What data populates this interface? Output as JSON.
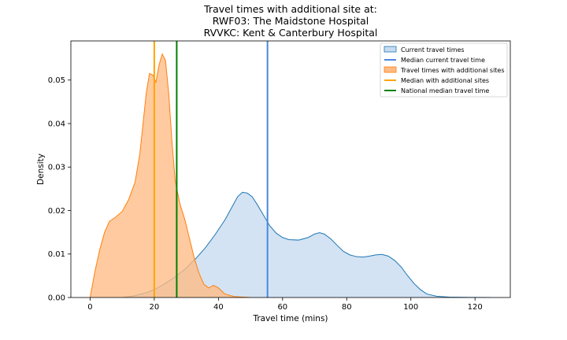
{
  "chart_data": {
    "type": "area",
    "title_lines": [
      "Travel times with additional site at:",
      "RWF03: The Maidstone Hospital",
      "RVVKC: Kent & Canterbury Hospital"
    ],
    "xlabel": "Travel time (mins)",
    "ylabel": "Density",
    "xlim": [
      -6,
      131
    ],
    "ylim": [
      0,
      0.059
    ],
    "xticks": [
      0,
      20,
      40,
      60,
      80,
      100,
      120
    ],
    "yticks": [
      0.0,
      0.01,
      0.02,
      0.03,
      0.04,
      0.05
    ],
    "ytick_labels": [
      "0.00",
      "0.01",
      "0.02",
      "0.03",
      "0.04",
      "0.05"
    ],
    "grid": false,
    "legend_position": "top-right",
    "series": [
      {
        "name": "Current travel times",
        "kind": "density",
        "color": "#1f77b4",
        "fill": "#c6dbef",
        "points": [
          [
            10,
            0
          ],
          [
            14,
            0.0004
          ],
          [
            18,
            0.0012
          ],
          [
            21,
            0.0022
          ],
          [
            24,
            0.0035
          ],
          [
            27,
            0.005
          ],
          [
            30,
            0.0068
          ],
          [
            33,
            0.009
          ],
          [
            36,
            0.0115
          ],
          [
            39,
            0.0145
          ],
          [
            42,
            0.0178
          ],
          [
            44,
            0.0205
          ],
          [
            46,
            0.0232
          ],
          [
            47.5,
            0.0242
          ],
          [
            49,
            0.024
          ],
          [
            50.5,
            0.0232
          ],
          [
            52,
            0.0215
          ],
          [
            54,
            0.019
          ],
          [
            56,
            0.0165
          ],
          [
            58,
            0.0148
          ],
          [
            60,
            0.0138
          ],
          [
            62,
            0.0133
          ],
          [
            65,
            0.0132
          ],
          [
            68,
            0.0138
          ],
          [
            70,
            0.0146
          ],
          [
            71.5,
            0.0149
          ],
          [
            73,
            0.0146
          ],
          [
            75,
            0.0135
          ],
          [
            77,
            0.012
          ],
          [
            79,
            0.0106
          ],
          [
            81,
            0.0098
          ],
          [
            83,
            0.0094
          ],
          [
            85,
            0.0093
          ],
          [
            87,
            0.0095
          ],
          [
            89,
            0.0098
          ],
          [
            91,
            0.0099
          ],
          [
            93,
            0.0095
          ],
          [
            95,
            0.0085
          ],
          [
            97,
            0.007
          ],
          [
            99,
            0.005
          ],
          [
            101,
            0.0032
          ],
          [
            103,
            0.0018
          ],
          [
            105,
            0.0008
          ],
          [
            108,
            0.0003
          ],
          [
            112,
            0.0001
          ],
          [
            118,
            3e-05
          ],
          [
            125,
            0
          ]
        ]
      },
      {
        "name": "Median current travel time",
        "kind": "vline",
        "color": "#4a88e0",
        "x": 55.3
      },
      {
        "name": "Travel times with additional sites",
        "kind": "density",
        "color": "#ff7f0e",
        "fill": "#ffbb84",
        "points": [
          [
            0,
            0
          ],
          [
            0.5,
            0.002
          ],
          [
            1.5,
            0.006
          ],
          [
            3,
            0.011
          ],
          [
            4.5,
            0.015
          ],
          [
            6,
            0.0175
          ],
          [
            8,
            0.0185
          ],
          [
            10,
            0.0198
          ],
          [
            12,
            0.0225
          ],
          [
            14,
            0.0265
          ],
          [
            15.5,
            0.033
          ],
          [
            16.5,
            0.04
          ],
          [
            17.5,
            0.047
          ],
          [
            18.5,
            0.0515
          ],
          [
            19.5,
            0.0512
          ],
          [
            20.5,
            0.0495
          ],
          [
            21.5,
            0.0535
          ],
          [
            22.5,
            0.056
          ],
          [
            23.5,
            0.0545
          ],
          [
            24.5,
            0.047
          ],
          [
            25.5,
            0.036
          ],
          [
            26.5,
            0.027
          ],
          [
            28,
            0.0215
          ],
          [
            29.5,
            0.018
          ],
          [
            31,
            0.0135
          ],
          [
            32.5,
            0.009
          ],
          [
            34,
            0.0055
          ],
          [
            35.5,
            0.003
          ],
          [
            37,
            0.0022
          ],
          [
            38.5,
            0.0028
          ],
          [
            40,
            0.0022
          ],
          [
            42,
            0.0008
          ],
          [
            45,
            0.0002
          ],
          [
            50,
            0
          ]
        ]
      },
      {
        "name": "Median with additional sites",
        "kind": "vline",
        "color": "#ffa500",
        "x": 20
      },
      {
        "name": "National median travel time",
        "kind": "vline",
        "color": "#008000",
        "x": 27
      }
    ]
  }
}
